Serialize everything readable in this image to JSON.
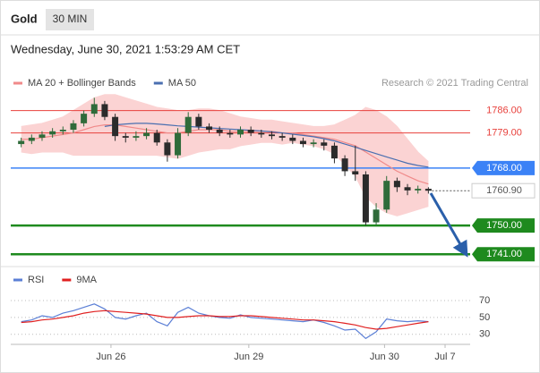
{
  "header": {
    "symbol": "Gold",
    "timeframe": "30 MIN",
    "datetime": "Wednesday, June 30, 2021 1:53:29 AM CET"
  },
  "chart_data": [
    {
      "type": "candlestick",
      "credit": "Research © 2021 Trading Central",
      "xlim": [
        0,
        44
      ],
      "ylim": [
        1738,
        1791.2
      ],
      "x": [
        1,
        2,
        3,
        4,
        5,
        6,
        7,
        8,
        9,
        10,
        11,
        12,
        13,
        14,
        15,
        16,
        17,
        18,
        19,
        20,
        21,
        22,
        23,
        24,
        25,
        26,
        27,
        28,
        29,
        30,
        31,
        32,
        33,
        34,
        35,
        36,
        37,
        38,
        39,
        40
      ],
      "open": [
        1775.5,
        1776.5,
        1777.5,
        1778.5,
        1779.5,
        1780,
        1782,
        1785,
        1788,
        1784,
        1778,
        1777.5,
        1778,
        1779,
        1776,
        1772,
        1779,
        1784,
        1781,
        1780,
        1779,
        1778.5,
        1780,
        1779,
        1778.5,
        1778,
        1777.5,
        1776.5,
        1775.5,
        1776,
        1775,
        1771,
        1767,
        1766,
        1751,
        1755,
        1764,
        1762,
        1761,
        1761.5
      ],
      "high": [
        1777.5,
        1778.5,
        1779.5,
        1780.5,
        1781,
        1783,
        1786,
        1790,
        1789,
        1785,
        1779,
        1779.5,
        1780.5,
        1780,
        1777,
        1780.5,
        1785.5,
        1785,
        1782,
        1781,
        1780,
        1781,
        1781,
        1780,
        1779.5,
        1779,
        1778.5,
        1777.5,
        1777,
        1777,
        1776,
        1772,
        1775,
        1767,
        1757,
        1765.5,
        1765,
        1763,
        1762.5,
        1762
      ],
      "low": [
        1774.5,
        1775.5,
        1776.5,
        1777.5,
        1778.5,
        1779,
        1781,
        1784,
        1783,
        1776.5,
        1776,
        1776.5,
        1777,
        1775,
        1770,
        1771,
        1778,
        1780,
        1779,
        1778,
        1777.5,
        1777.5,
        1778,
        1777.5,
        1777,
        1776.5,
        1775.5,
        1774.5,
        1774.5,
        1773.5,
        1769.5,
        1765.5,
        1764,
        1750,
        1750,
        1754,
        1760.5,
        1759.5,
        1760,
        1760
      ],
      "close": [
        1776.5,
        1777.5,
        1778.5,
        1779.5,
        1780,
        1782,
        1785,
        1788,
        1784,
        1778,
        1777.5,
        1778,
        1779,
        1776,
        1772,
        1779,
        1784,
        1781,
        1780,
        1779,
        1778.5,
        1780,
        1779,
        1778.5,
        1778,
        1777.5,
        1776.5,
        1775.5,
        1776,
        1775,
        1771,
        1767,
        1766,
        1751,
        1755,
        1764,
        1762,
        1761,
        1761.5,
        1760.9
      ],
      "up_color": "#2f6b3a",
      "down_color": "#2b2b2b",
      "overlays": [
        {
          "name": "MA 20 + Bollinger Bands",
          "color": "#f08a8a",
          "band_color": "#fbd3d3",
          "values": [
            1777,
            1777,
            1777.5,
            1778,
            1778.5,
            1779,
            1780,
            1781,
            1781.5,
            1781.5,
            1781,
            1780.5,
            1780,
            1779.5,
            1779,
            1779,
            1779.5,
            1780,
            1780,
            1780,
            1779.5,
            1779.5,
            1779.5,
            1779.5,
            1779.5,
            1779,
            1779,
            1778.5,
            1778,
            1777.5,
            1777,
            1776,
            1775,
            1773,
            1771,
            1769,
            1767,
            1765.5,
            1764,
            1763
          ],
          "upper": [
            1781,
            1781.5,
            1782,
            1783,
            1784,
            1786,
            1788,
            1790,
            1791,
            1791,
            1790,
            1789,
            1788,
            1787,
            1786.5,
            1786,
            1786,
            1786.5,
            1786.5,
            1786,
            1785,
            1784,
            1783.5,
            1783,
            1783,
            1782.5,
            1782,
            1781.5,
            1781,
            1781,
            1781.5,
            1783,
            1784.5,
            1787,
            1786,
            1784,
            1781,
            1777,
            1773,
            1770
          ],
          "lower": [
            1773,
            1772.5,
            1773,
            1773,
            1773,
            1772,
            1772,
            1772,
            1772,
            1772,
            1772,
            1772,
            1772,
            1772,
            1771.5,
            1771,
            1772,
            1773,
            1773.5,
            1774,
            1774,
            1775,
            1775.5,
            1776,
            1776,
            1775.5,
            1776,
            1775.5,
            1775,
            1774,
            1772.5,
            1769,
            1765.5,
            1759,
            1756,
            1754,
            1753,
            1754,
            1755,
            1756
          ]
        },
        {
          "name": "MA 50",
          "color": "#4a6fb0",
          "values": [
            null,
            null,
            null,
            null,
            null,
            null,
            null,
            null,
            1781,
            1781.5,
            1781.8,
            1782,
            1782,
            1781.8,
            1781.5,
            1781.2,
            1781,
            1780.8,
            1780.6,
            1780.4,
            1780.2,
            1780,
            1779.8,
            1779.6,
            1779.3,
            1779,
            1778.6,
            1778.2,
            1777.8,
            1777.2,
            1776.5,
            1775.5,
            1774.5,
            1773.5,
            1772.5,
            1771.5,
            1770.5,
            1769.5,
            1768.8,
            1768.3
          ]
        }
      ],
      "levels": [
        {
          "value": 1786,
          "label": "1786.00",
          "color": "#e8413c",
          "filled": false,
          "weight": 1
        },
        {
          "value": 1779,
          "label": "1779.00",
          "color": "#e8413c",
          "filled": false,
          "weight": 1
        },
        {
          "value": 1768,
          "label": "1768.00",
          "color": "#3b82f6",
          "filled": true,
          "weight": 1.5
        },
        {
          "value": 1760.9,
          "label": "1760.90",
          "color": "#555555",
          "filled": false,
          "weight": 1,
          "dotted": true
        },
        {
          "value": 1750,
          "label": "1750.00",
          "color": "#1e8a1e",
          "filled": true,
          "weight": 2.5
        },
        {
          "value": 1741,
          "label": "1741.00",
          "color": "#1e8a1e",
          "filled": true,
          "weight": 2.5
        }
      ]
    },
    {
      "type": "line",
      "xlim": [
        0,
        44
      ],
      "ylim": [
        18,
        87
      ],
      "yticks": [
        70,
        50,
        30
      ],
      "grid": true,
      "xticks": [
        {
          "value": 9.6,
          "label": "Jun 26"
        },
        {
          "value": 22.8,
          "label": "Jun 29"
        },
        {
          "value": 35.8,
          "label": "Jun 30"
        },
        {
          "value": 41.6,
          "label": "Jul 7"
        }
      ],
      "x": [
        1,
        2,
        3,
        4,
        5,
        6,
        7,
        8,
        9,
        10,
        11,
        12,
        13,
        14,
        15,
        16,
        17,
        18,
        19,
        20,
        21,
        22,
        23,
        24,
        25,
        26,
        27,
        28,
        29,
        30,
        31,
        32,
        33,
        34,
        35,
        36,
        37,
        38,
        39,
        40
      ],
      "series": [
        {
          "name": "RSI",
          "color": "#5b7fd6",
          "values": [
            45,
            47,
            52,
            50,
            55,
            58,
            62,
            66,
            60,
            50,
            48,
            52,
            55,
            45,
            40,
            56,
            62,
            55,
            52,
            50,
            49,
            53,
            50,
            49,
            48,
            47,
            46,
            45,
            47,
            44,
            40,
            35,
            36,
            25,
            33,
            48,
            46,
            45,
            46,
            45
          ]
        },
        {
          "name": "9MA",
          "color": "#e02020",
          "values": [
            44,
            45,
            47,
            48,
            50,
            52,
            55,
            57,
            58,
            57,
            56,
            55,
            54,
            52,
            50,
            50,
            51,
            52,
            52,
            51,
            51,
            52,
            52,
            51,
            50,
            49,
            48,
            47,
            47,
            46,
            45,
            43,
            41,
            38,
            36,
            37,
            39,
            41,
            43,
            45
          ]
        }
      ]
    }
  ]
}
